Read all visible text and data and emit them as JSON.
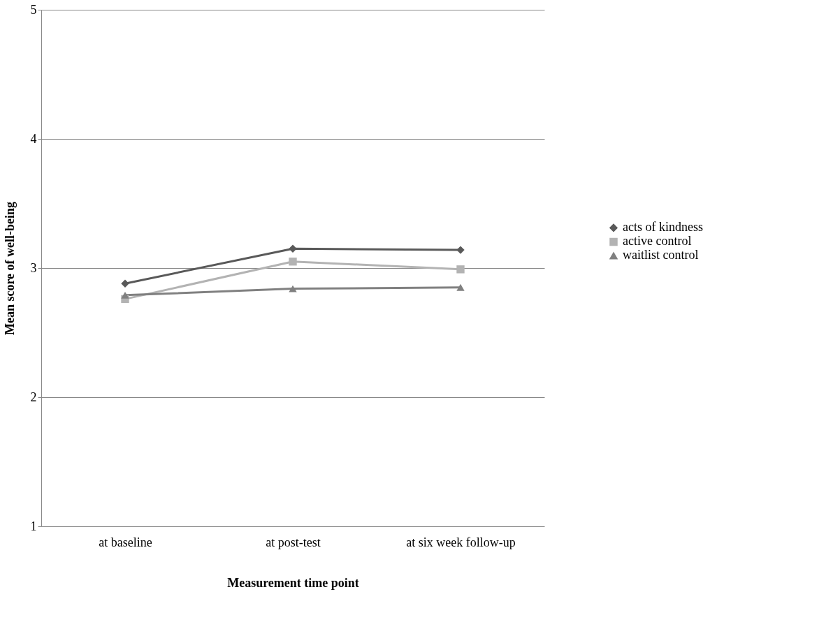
{
  "chart_data": {
    "type": "line",
    "xlabel": "Measurement time point",
    "ylabel": "Mean score of well-being",
    "categories": [
      "at baseline",
      "at post-test",
      "at six week follow-up"
    ],
    "series": [
      {
        "name": "acts of kindness",
        "color": "#595959",
        "marker": "diamond",
        "values": [
          2.88,
          3.15,
          3.14
        ]
      },
      {
        "name": "active control",
        "color": "#b3b3b3",
        "marker": "square",
        "values": [
          2.76,
          3.05,
          2.99
        ]
      },
      {
        "name": "waitlist control",
        "color": "#808080",
        "marker": "triangle",
        "values": [
          2.79,
          2.84,
          2.85
        ]
      }
    ],
    "ylim": [
      1,
      5
    ],
    "yticks": [
      1,
      2,
      3,
      4,
      5
    ],
    "grid": "y",
    "legend": "right",
    "line_style": "solid"
  }
}
